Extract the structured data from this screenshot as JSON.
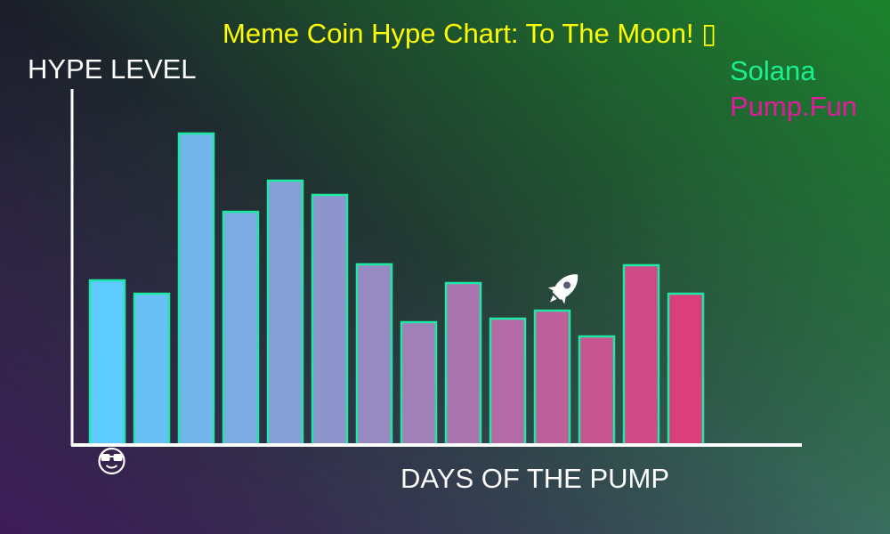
{
  "chart_data": {
    "type": "bar",
    "title": "Meme Coin Hype Chart: To The Moon! ▯",
    "xlabel": "DAYS OF THE PUMP",
    "ylabel": "HYPE LEVEL",
    "values": [
      185,
      170,
      350,
      262,
      297,
      281,
      203,
      138,
      182,
      142,
      151,
      122,
      202,
      170
    ],
    "ylim": [
      0,
      400
    ],
    "legend": [
      {
        "label": "Solana",
        "color": "#19f08f"
      },
      {
        "label": "Pump.Fun",
        "color": "#e41a9c"
      }
    ],
    "bar_gradient": [
      "#5ecbff",
      "#da3f7c"
    ],
    "bar_outline_color": "#1ee8a4",
    "rocket_icon_over_bar": 11,
    "face_icon_under_bar": 1
  },
  "colors": {
    "title": "#ffff00",
    "axis": "#ffffff",
    "background_gradient": [
      "#1b1d2a",
      "#1a7a2e",
      "#3a6b5e",
      "#3b1a55"
    ]
  },
  "icons": [
    "rocket-icon",
    "cool-face-icon"
  ]
}
